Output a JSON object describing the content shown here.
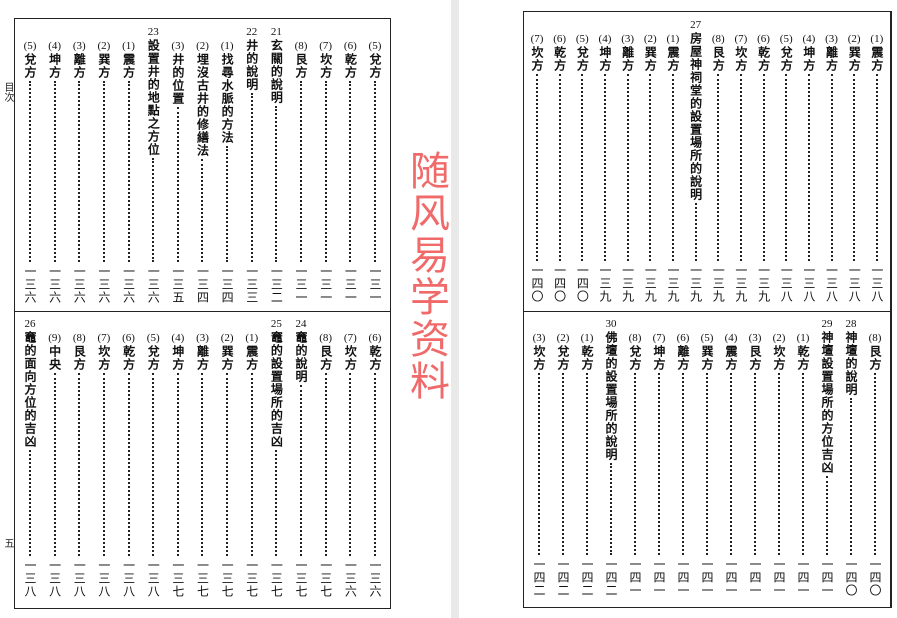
{
  "side_labels": {
    "toc": "目次",
    "page_number": "五"
  },
  "watermark": "随风易学资料",
  "left_page": {
    "top": [
      {
        "n": "(5)",
        "t": "兌方",
        "p": "一三一"
      },
      {
        "n": "(6)",
        "t": "乾方",
        "p": "一三一"
      },
      {
        "n": "(7)",
        "t": "坎方",
        "p": "一三一"
      },
      {
        "n": "(8)",
        "t": "艮方",
        "p": "一三一"
      },
      {
        "ch": "21",
        "t": "玄關的說明",
        "p": "一三二"
      },
      {
        "ch": "22",
        "t": "井的說明",
        "p": "一三三"
      },
      {
        "n": "(1)",
        "t": "找尋水脈的方法",
        "p": "一三四"
      },
      {
        "n": "(2)",
        "t": "埋沒古井的修繕法",
        "p": "一三四"
      },
      {
        "n": "(3)",
        "t": "井的位置",
        "p": "一三五"
      },
      {
        "ch": "23",
        "t": "設置井的地點之方位",
        "p": "一三六"
      },
      {
        "n": "(1)",
        "t": "震方",
        "p": "一三六"
      },
      {
        "n": "(2)",
        "t": "巽方",
        "p": "一三六"
      },
      {
        "n": "(3)",
        "t": "離方",
        "p": "一三六"
      },
      {
        "n": "(4)",
        "t": "坤方",
        "p": "一三六"
      },
      {
        "n": "(5)",
        "t": "兌方",
        "p": "一三六"
      }
    ],
    "bottom": [
      {
        "n": "(6)",
        "t": "乾方",
        "p": "一三六"
      },
      {
        "n": "(7)",
        "t": "坎方",
        "p": "一三六"
      },
      {
        "n": "(8)",
        "t": "艮方",
        "p": "一三七"
      },
      {
        "ch": "24",
        "t": "竈的說明",
        "p": "一三七"
      },
      {
        "ch": "25",
        "t": "竈的設置場所的吉凶",
        "p": "一三七"
      },
      {
        "n": "(1)",
        "t": "震方",
        "p": "一三七"
      },
      {
        "n": "(2)",
        "t": "巽方",
        "p": "一三七"
      },
      {
        "n": "(3)",
        "t": "離方",
        "p": "一三七"
      },
      {
        "n": "(4)",
        "t": "坤方",
        "p": "一三七"
      },
      {
        "n": "(5)",
        "t": "兌方",
        "p": "一三八"
      },
      {
        "n": "(6)",
        "t": "乾方",
        "p": "一三八"
      },
      {
        "n": "(7)",
        "t": "坎方",
        "p": "一三八"
      },
      {
        "n": "(8)",
        "t": "艮方",
        "p": "一三八"
      },
      {
        "n": "(9)",
        "t": "中央",
        "p": "一三八"
      },
      {
        "ch": "26",
        "t": "竈的面向方位的吉凶",
        "p": "一三八"
      }
    ]
  },
  "right_page": {
    "top": [
      {
        "n": "(1)",
        "t": "震方",
        "p": "一三八"
      },
      {
        "n": "(2)",
        "t": "巽方",
        "p": "一三八"
      },
      {
        "n": "(3)",
        "t": "離方",
        "p": "一三八"
      },
      {
        "n": "(4)",
        "t": "坤方",
        "p": "一三八"
      },
      {
        "n": "(5)",
        "t": "兌方",
        "p": "一三八"
      },
      {
        "n": "(6)",
        "t": "乾方",
        "p": "一三九"
      },
      {
        "n": "(7)",
        "t": "坎方",
        "p": "一三九"
      },
      {
        "n": "(8)",
        "t": "艮方",
        "p": "一三九"
      },
      {
        "ch": "27",
        "t": "房屋神祠堂的設置場所的說明",
        "p": "一三九"
      },
      {
        "n": "(1)",
        "t": "震方",
        "p": "一三九"
      },
      {
        "n": "(2)",
        "t": "巽方",
        "p": "一三九"
      },
      {
        "n": "(3)",
        "t": "離方",
        "p": "一三九"
      },
      {
        "n": "(4)",
        "t": "坤方",
        "p": "一三九"
      },
      {
        "n": "(5)",
        "t": "兌方",
        "p": "一四〇"
      },
      {
        "n": "(6)",
        "t": "乾方",
        "p": "一四〇"
      },
      {
        "n": "(7)",
        "t": "坎方",
        "p": "一四〇"
      }
    ],
    "bottom": [
      {
        "n": "(8)",
        "t": "艮方",
        "p": "一四〇"
      },
      {
        "ch": "28",
        "t": "神壇的說明",
        "p": "一四〇"
      },
      {
        "ch": "29",
        "t": "神壇設置場所的方位吉凶",
        "p": "一四一"
      },
      {
        "n": "(1)",
        "t": "乾方",
        "p": "一四一"
      },
      {
        "n": "(2)",
        "t": "坎方",
        "p": "一四一"
      },
      {
        "n": "(3)",
        "t": "艮方",
        "p": "一四一"
      },
      {
        "n": "(4)",
        "t": "震方",
        "p": "一四一"
      },
      {
        "n": "(5)",
        "t": "巽方",
        "p": "一四一"
      },
      {
        "n": "(6)",
        "t": "離方",
        "p": "一四一"
      },
      {
        "n": "(7)",
        "t": "坤方",
        "p": "一四一"
      },
      {
        "n": "(8)",
        "t": "兌方",
        "p": "一四一"
      },
      {
        "ch": "30",
        "t": "佛壇的設置場所的說明",
        "p": "一四二"
      },
      {
        "n": "(1)",
        "t": "乾方",
        "p": "一四二"
      },
      {
        "n": "(2)",
        "t": "兌方",
        "p": "一四二"
      },
      {
        "n": "(3)",
        "t": "坎方",
        "p": "一四二"
      }
    ]
  }
}
